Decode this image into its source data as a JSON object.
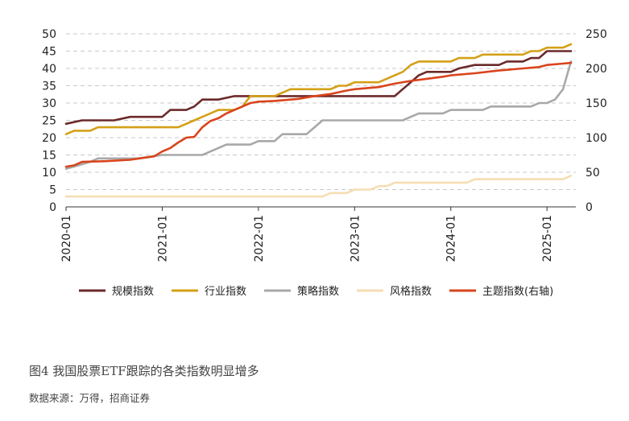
{
  "chart_data": {
    "type": "line",
    "title": "",
    "xlabel": "",
    "ylabel": "",
    "x_tick_labels": [
      "2020-01",
      "2021-01",
      "2022-01",
      "2023-01",
      "2024-01",
      "2025-01"
    ],
    "x_range": [
      "2020-01",
      "2025-04"
    ],
    "ylim_left": [
      0,
      50
    ],
    "ylim_right": [
      0,
      250
    ],
    "y_ticks_left": [
      0,
      5,
      10,
      15,
      20,
      25,
      30,
      35,
      40,
      45,
      50
    ],
    "y_ticks_right": [
      0,
      50,
      100,
      150,
      200,
      250
    ],
    "grid": "horizontal dashed",
    "legend_position": "bottom",
    "series": [
      {
        "name": "规模指数",
        "axis": "left",
        "color": "#6b2a2a",
        "points": [
          [
            "2020-01",
            24
          ],
          [
            "2020-03",
            25
          ],
          [
            "2020-07",
            25
          ],
          [
            "2020-09",
            26
          ],
          [
            "2021-01",
            26
          ],
          [
            "2021-02",
            28
          ],
          [
            "2021-04",
            28
          ],
          [
            "2021-05",
            29
          ],
          [
            "2021-06",
            31
          ],
          [
            "2021-08",
            31
          ],
          [
            "2021-10",
            32
          ],
          [
            "2022-01",
            32
          ],
          [
            "2022-06",
            32
          ],
          [
            "2022-09",
            32
          ],
          [
            "2023-01",
            32
          ],
          [
            "2023-06",
            32
          ],
          [
            "2023-07",
            34
          ],
          [
            "2023-08",
            36
          ],
          [
            "2023-09",
            38
          ],
          [
            "2023-10",
            39
          ],
          [
            "2024-01",
            39
          ],
          [
            "2024-02",
            40
          ],
          [
            "2024-04",
            41
          ],
          [
            "2024-07",
            41
          ],
          [
            "2024-08",
            42
          ],
          [
            "2024-10",
            42
          ],
          [
            "2024-11",
            43
          ],
          [
            "2024-12",
            43
          ],
          [
            "2025-01",
            45
          ],
          [
            "2025-04",
            45
          ]
        ]
      },
      {
        "name": "行业指数",
        "axis": "left",
        "color": "#d4a017",
        "points": [
          [
            "2020-01",
            21
          ],
          [
            "2020-02",
            22
          ],
          [
            "2020-04",
            22
          ],
          [
            "2020-05",
            23
          ],
          [
            "2021-01",
            23
          ],
          [
            "2021-03",
            23
          ],
          [
            "2021-04",
            24
          ],
          [
            "2021-05",
            25
          ],
          [
            "2021-06",
            26
          ],
          [
            "2021-08",
            28
          ],
          [
            "2021-10",
            28
          ],
          [
            "2021-11",
            29
          ],
          [
            "2021-12",
            32
          ],
          [
            "2022-03",
            32
          ],
          [
            "2022-04",
            33
          ],
          [
            "2022-05",
            34
          ],
          [
            "2022-10",
            34
          ],
          [
            "2022-11",
            35
          ],
          [
            "2022-12",
            35
          ],
          [
            "2023-01",
            36
          ],
          [
            "2023-04",
            36
          ],
          [
            "2023-05",
            37
          ],
          [
            "2023-06",
            38
          ],
          [
            "2023-07",
            39
          ],
          [
            "2023-08",
            41
          ],
          [
            "2023-09",
            42
          ],
          [
            "2023-12",
            42
          ],
          [
            "2024-01",
            42
          ],
          [
            "2024-02",
            43
          ],
          [
            "2024-04",
            43
          ],
          [
            "2024-05",
            44
          ],
          [
            "2024-10",
            44
          ],
          [
            "2024-11",
            45
          ],
          [
            "2024-12",
            45
          ],
          [
            "2025-01",
            46
          ],
          [
            "2025-03",
            46
          ],
          [
            "2025-04",
            47
          ]
        ]
      },
      {
        "name": "策略指数",
        "axis": "left",
        "color": "#a8a8a8",
        "points": [
          [
            "2020-01",
            11
          ],
          [
            "2020-04",
            13
          ],
          [
            "2020-05",
            14
          ],
          [
            "2020-10",
            14
          ],
          [
            "2021-01",
            15
          ],
          [
            "2021-06",
            15
          ],
          [
            "2021-07",
            16
          ],
          [
            "2021-08",
            17
          ],
          [
            "2021-09",
            18
          ],
          [
            "2021-12",
            18
          ],
          [
            "2022-01",
            19
          ],
          [
            "2022-03",
            19
          ],
          [
            "2022-04",
            21
          ],
          [
            "2022-07",
            21
          ],
          [
            "2022-08",
            23
          ],
          [
            "2022-09",
            25
          ],
          [
            "2023-01",
            25
          ],
          [
            "2023-07",
            25
          ],
          [
            "2023-08",
            26
          ],
          [
            "2023-09",
            27
          ],
          [
            "2023-12",
            27
          ],
          [
            "2024-01",
            28
          ],
          [
            "2024-05",
            28
          ],
          [
            "2024-06",
            29
          ],
          [
            "2024-11",
            29
          ],
          [
            "2024-12",
            30
          ],
          [
            "2025-01",
            30
          ],
          [
            "2025-02",
            31
          ],
          [
            "2025-03",
            34
          ],
          [
            "2025-04",
            42
          ]
        ]
      },
      {
        "name": "风格指数",
        "axis": "left",
        "color": "#f5deb3",
        "points": [
          [
            "2020-01",
            3
          ],
          [
            "2021-01",
            3
          ],
          [
            "2022-01",
            3
          ],
          [
            "2022-09",
            3
          ],
          [
            "2022-10",
            4
          ],
          [
            "2022-12",
            4
          ],
          [
            "2023-01",
            5
          ],
          [
            "2023-03",
            5
          ],
          [
            "2023-04",
            6
          ],
          [
            "2023-05",
            6
          ],
          [
            "2023-06",
            7
          ],
          [
            "2024-01",
            7
          ],
          [
            "2024-03",
            7
          ],
          [
            "2024-04",
            8
          ],
          [
            "2025-01",
            8
          ],
          [
            "2025-03",
            8
          ],
          [
            "2025-04",
            9
          ]
        ]
      },
      {
        "name": "主题指数(右轴)",
        "axis": "right",
        "color": "#d9441c",
        "points": [
          [
            "2020-01",
            58
          ],
          [
            "2020-02",
            60
          ],
          [
            "2020-03",
            65
          ],
          [
            "2020-06",
            66
          ],
          [
            "2020-09",
            68
          ],
          [
            "2020-12",
            73
          ],
          [
            "2021-01",
            80
          ],
          [
            "2021-02",
            85
          ],
          [
            "2021-03",
            93
          ],
          [
            "2021-04",
            100
          ],
          [
            "2021-05",
            101
          ],
          [
            "2021-06",
            115
          ],
          [
            "2021-07",
            124
          ],
          [
            "2021-08",
            128
          ],
          [
            "2021-09",
            135
          ],
          [
            "2021-10",
            140
          ],
          [
            "2021-11",
            145
          ],
          [
            "2021-12",
            150
          ],
          [
            "2022-01",
            152
          ],
          [
            "2022-03",
            153
          ],
          [
            "2022-06",
            156
          ],
          [
            "2022-08",
            160
          ],
          [
            "2022-10",
            163
          ],
          [
            "2022-12",
            168
          ],
          [
            "2023-01",
            170
          ],
          [
            "2023-04",
            173
          ],
          [
            "2023-06",
            178
          ],
          [
            "2023-08",
            182
          ],
          [
            "2023-10",
            185
          ],
          [
            "2023-12",
            188
          ],
          [
            "2024-01",
            190
          ],
          [
            "2024-04",
            193
          ],
          [
            "2024-07",
            197
          ],
          [
            "2024-10",
            200
          ],
          [
            "2024-12",
            202
          ],
          [
            "2025-01",
            205
          ],
          [
            "2025-03",
            207
          ],
          [
            "2025-04",
            208
          ]
        ]
      }
    ]
  },
  "caption": "图4   我国股票ETF跟踪的各类指数明显增多",
  "source": "数据来源：万得，招商证券"
}
